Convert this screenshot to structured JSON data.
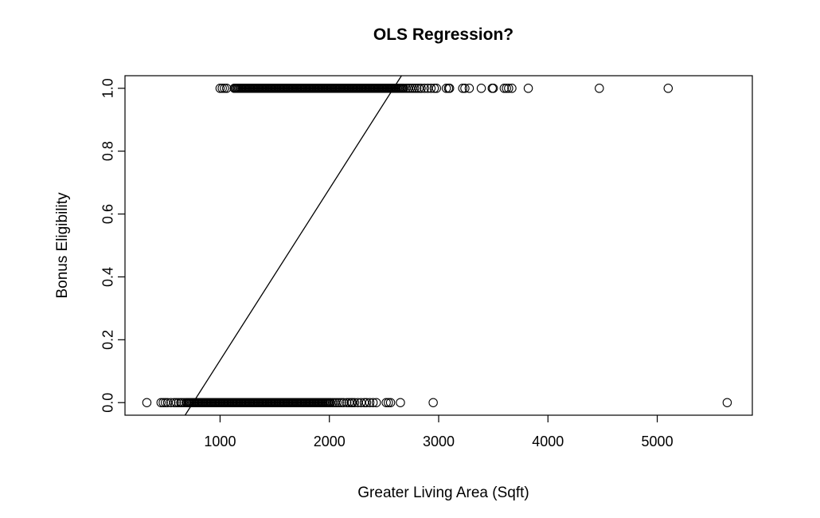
{
  "chart_data": {
    "type": "scatter",
    "title": "OLS Regression?",
    "xlabel": "Greater Living Area (Sqft)",
    "ylabel": "Bonus Eligibility",
    "xlim": [
      130,
      5870
    ],
    "ylim": [
      -0.04,
      1.04
    ],
    "xticks": [
      1000,
      2000,
      3000,
      4000,
      5000
    ],
    "xtick_labels": [
      "1000",
      "2000",
      "3000",
      "4000",
      "5000"
    ],
    "yticks": [
      0.0,
      0.2,
      0.4,
      0.6,
      0.8,
      1.0
    ],
    "ytick_labels": [
      "0.0",
      "0.2",
      "0.4",
      "0.6",
      "0.8",
      "1.0"
    ],
    "grid": false,
    "legend": "none",
    "series": [
      {
        "y": 1,
        "x": [
          1000,
          1020,
          1040,
          1060,
          1130,
          1140,
          1150,
          1160,
          1170,
          1180,
          1190,
          1200,
          1210,
          1220,
          1230,
          1240,
          1250,
          1260,
          1270,
          1280,
          1290,
          1300,
          1310,
          1320,
          1330,
          1340,
          1350,
          1360,
          1370,
          1380,
          1390,
          1400,
          1410,
          1420,
          1430,
          1440,
          1450,
          1460,
          1470,
          1480,
          1490,
          1500,
          1510,
          1520,
          1530,
          1540,
          1550,
          1560,
          1570,
          1580,
          1590,
          1600,
          1610,
          1620,
          1630,
          1640,
          1650,
          1660,
          1670,
          1680,
          1690,
          1700,
          1710,
          1720,
          1730,
          1740,
          1750,
          1760,
          1770,
          1780,
          1790,
          1800,
          1810,
          1820,
          1830,
          1840,
          1850,
          1860,
          1870,
          1880,
          1890,
          1900,
          1910,
          1920,
          1930,
          1940,
          1950,
          1960,
          1970,
          1980,
          1990,
          2000,
          2010,
          2020,
          2030,
          2040,
          2050,
          2060,
          2070,
          2080,
          2090,
          2100,
          2110,
          2120,
          2130,
          2140,
          2150,
          2160,
          2170,
          2180,
          2190,
          2200,
          2210,
          2220,
          2230,
          2240,
          2250,
          2260,
          2270,
          2280,
          2290,
          2300,
          2310,
          2320,
          2330,
          2340,
          2350,
          2360,
          2370,
          2380,
          2390,
          2400,
          2410,
          2420,
          2430,
          2440,
          2450,
          2460,
          2470,
          2480,
          2490,
          2500,
          2510,
          2520,
          2530,
          2540,
          2550,
          2560,
          2570,
          2580,
          2590,
          2600,
          2610,
          2620,
          2630,
          2640,
          2650,
          2660,
          2670,
          2680,
          2700,
          2720,
          2740,
          2760,
          2780,
          2800,
          2820,
          2840,
          2870,
          2900,
          2930,
          2960,
          2980,
          3070,
          3090,
          3100,
          3220,
          3240,
          3280,
          3390,
          3490,
          3500,
          3600,
          3620,
          3640,
          3670,
          3820,
          4470,
          5100
        ]
      },
      {
        "y": 0,
        "x": [
          330,
          460,
          480,
          500,
          520,
          550,
          580,
          600,
          620,
          640,
          650,
          670,
          690,
          700,
          710,
          720,
          730,
          740,
          750,
          760,
          770,
          780,
          790,
          800,
          810,
          820,
          830,
          840,
          850,
          860,
          870,
          880,
          890,
          900,
          910,
          920,
          930,
          940,
          950,
          960,
          970,
          980,
          990,
          1000,
          1010,
          1020,
          1030,
          1040,
          1050,
          1060,
          1070,
          1080,
          1090,
          1100,
          1110,
          1120,
          1130,
          1140,
          1150,
          1160,
          1170,
          1180,
          1190,
          1200,
          1210,
          1220,
          1230,
          1240,
          1250,
          1260,
          1270,
          1280,
          1290,
          1300,
          1310,
          1320,
          1330,
          1340,
          1350,
          1360,
          1370,
          1380,
          1390,
          1400,
          1410,
          1420,
          1430,
          1440,
          1450,
          1460,
          1470,
          1480,
          1490,
          1500,
          1510,
          1520,
          1530,
          1540,
          1550,
          1560,
          1570,
          1580,
          1590,
          1600,
          1610,
          1620,
          1630,
          1640,
          1650,
          1660,
          1670,
          1680,
          1690,
          1700,
          1710,
          1720,
          1730,
          1740,
          1750,
          1760,
          1770,
          1780,
          1790,
          1800,
          1810,
          1820,
          1830,
          1840,
          1850,
          1860,
          1870,
          1880,
          1890,
          1900,
          1910,
          1920,
          1930,
          1940,
          1950,
          1960,
          1970,
          1980,
          1990,
          2000,
          2010,
          2030,
          2050,
          2070,
          2090,
          2110,
          2130,
          2160,
          2180,
          2200,
          2210,
          2230,
          2260,
          2290,
          2320,
          2340,
          2370,
          2400,
          2430,
          2520,
          2540,
          2560,
          2650,
          2950,
          5640
        ]
      }
    ],
    "fit_line": {
      "x": [
        680,
        2660
      ],
      "y": [
        -0.04,
        1.04
      ]
    }
  }
}
